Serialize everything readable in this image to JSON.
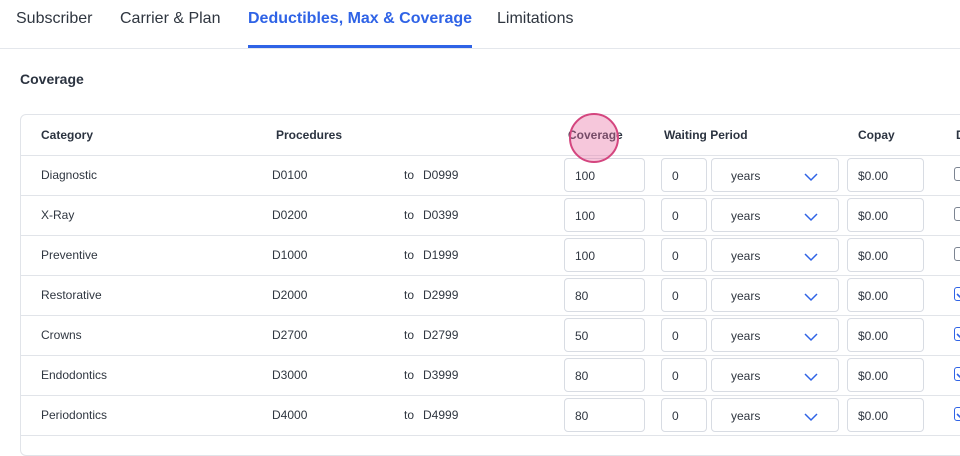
{
  "tabs": [
    {
      "label": "Subscriber"
    },
    {
      "label": "Carrier & Plan"
    },
    {
      "label": "Deductibles, Max & Coverage"
    },
    {
      "label": "Limitations"
    }
  ],
  "section_title": "Coverage",
  "headers": {
    "category": "Category",
    "procedures": "Procedures",
    "coverage": "Coverage",
    "waiting_period": "Waiting Period",
    "copay": "Copay",
    "last": "D"
  },
  "to_label": "to",
  "rows": [
    {
      "category": "Diagnostic",
      "from": "D0100",
      "to": "D0999",
      "coverage": "100",
      "wait": "0",
      "unit": "years",
      "copay": "$0.00",
      "checked": false
    },
    {
      "category": "X-Ray",
      "from": "D0200",
      "to": "D0399",
      "coverage": "100",
      "wait": "0",
      "unit": "years",
      "copay": "$0.00",
      "checked": false
    },
    {
      "category": "Preventive",
      "from": "D1000",
      "to": "D1999",
      "coverage": "100",
      "wait": "0",
      "unit": "years",
      "copay": "$0.00",
      "checked": false
    },
    {
      "category": "Restorative",
      "from": "D2000",
      "to": "D2999",
      "coverage": "80",
      "wait": "0",
      "unit": "years",
      "copay": "$0.00",
      "checked": true
    },
    {
      "category": "Crowns",
      "from": "D2700",
      "to": "D2799",
      "coverage": "50",
      "wait": "0",
      "unit": "years",
      "copay": "$0.00",
      "checked": true
    },
    {
      "category": "Endodontics",
      "from": "D3000",
      "to": "D3999",
      "coverage": "80",
      "wait": "0",
      "unit": "years",
      "copay": "$0.00",
      "checked": true
    },
    {
      "category": "Periodontics",
      "from": "D4000",
      "to": "D4999",
      "coverage": "80",
      "wait": "0",
      "unit": "years",
      "copay": "$0.00",
      "checked": true
    }
  ],
  "colors": {
    "accent": "#2f63e6",
    "border": "#e1e4e9",
    "cursor": "#d4467f"
  },
  "icons": {
    "dropdown": "chevron-down-icon",
    "checkbox": "checkbox-icon"
  }
}
